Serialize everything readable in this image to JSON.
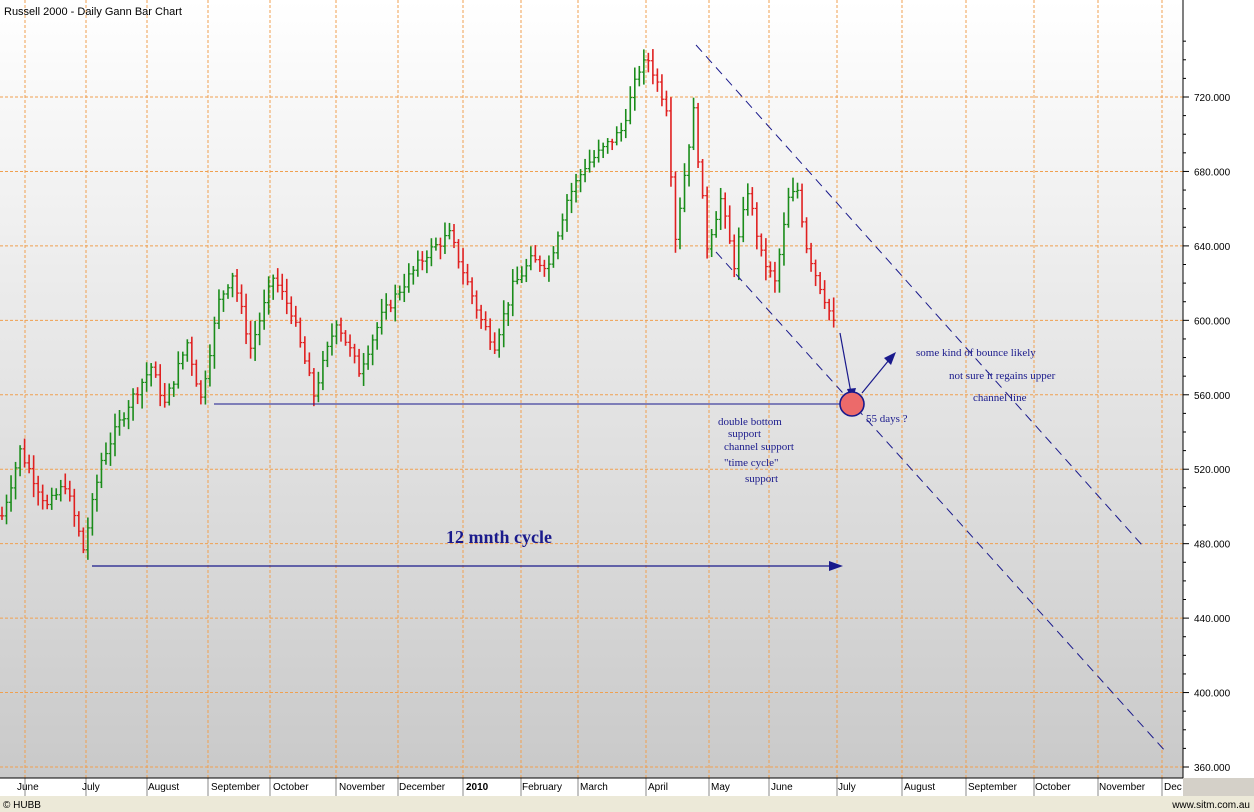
{
  "chart_data": {
    "type": "ohlc-bar",
    "title": "Russell 2000 - Daily Gann Bar Chart",
    "ylim": [
      360,
      760
    ],
    "y_ticks": [
      {
        "value": 360,
        "label": "360.000"
      },
      {
        "value": 400,
        "label": "400.000"
      },
      {
        "value": 440,
        "label": "440.000"
      },
      {
        "value": 480,
        "label": "480.000"
      },
      {
        "value": 520,
        "label": "520.000"
      },
      {
        "value": 560,
        "label": "560.000"
      },
      {
        "value": 600,
        "label": "600.000"
      },
      {
        "value": 640,
        "label": "640.000"
      },
      {
        "value": 680,
        "label": "680.000"
      },
      {
        "value": 720,
        "label": "720.000"
      }
    ],
    "x_labels": [
      "June",
      "July",
      "August",
      "September",
      "October",
      "November",
      "December",
      "2010",
      "February",
      "March",
      "April",
      "May",
      "June",
      "July",
      "August",
      "September",
      "October",
      "November",
      "Dec"
    ],
    "grid": true,
    "colors": {
      "up": "#1a8c1a",
      "down": "#e02020",
      "grid": "#f0a050",
      "annotation": "#1a1a8c"
    },
    "price_path": [
      {
        "t": 0,
        "v": 495
      },
      {
        "t": 4,
        "v": 530
      },
      {
        "t": 10,
        "v": 500
      },
      {
        "t": 14,
        "v": 512
      },
      {
        "t": 18,
        "v": 477
      },
      {
        "t": 22,
        "v": 525
      },
      {
        "t": 28,
        "v": 555
      },
      {
        "t": 33,
        "v": 575
      },
      {
        "t": 36,
        "v": 555
      },
      {
        "t": 41,
        "v": 588
      },
      {
        "t": 44,
        "v": 558
      },
      {
        "t": 48,
        "v": 610
      },
      {
        "t": 51,
        "v": 625
      },
      {
        "t": 55,
        "v": 585
      },
      {
        "t": 60,
        "v": 623
      },
      {
        "t": 64,
        "v": 605
      },
      {
        "t": 69,
        "v": 560
      },
      {
        "t": 74,
        "v": 600
      },
      {
        "t": 79,
        "v": 573
      },
      {
        "t": 84,
        "v": 602
      },
      {
        "t": 89,
        "v": 620
      },
      {
        "t": 94,
        "v": 636
      },
      {
        "t": 99,
        "v": 646
      },
      {
        "t": 103,
        "v": 620
      },
      {
        "t": 106,
        "v": 600
      },
      {
        "t": 109,
        "v": 587
      },
      {
        "t": 113,
        "v": 618
      },
      {
        "t": 117,
        "v": 632
      },
      {
        "t": 121,
        "v": 630
      },
      {
        "t": 125,
        "v": 665
      },
      {
        "t": 129,
        "v": 683
      },
      {
        "t": 133,
        "v": 692
      },
      {
        "t": 137,
        "v": 702
      },
      {
        "t": 141,
        "v": 735
      },
      {
        "t": 143,
        "v": 740
      },
      {
        "t": 147,
        "v": 715
      },
      {
        "t": 149,
        "v": 645
      },
      {
        "t": 153,
        "v": 712
      },
      {
        "t": 156,
        "v": 640
      },
      {
        "t": 159,
        "v": 665
      },
      {
        "t": 162,
        "v": 630
      },
      {
        "t": 165,
        "v": 670
      },
      {
        "t": 168,
        "v": 635
      },
      {
        "t": 171,
        "v": 620
      },
      {
        "t": 174,
        "v": 665
      },
      {
        "t": 176,
        "v": 670
      },
      {
        "t": 178,
        "v": 640
      },
      {
        "t": 180,
        "v": 625
      },
      {
        "t": 182,
        "v": 612
      },
      {
        "t": 184,
        "v": 598
      }
    ],
    "annotations": [
      {
        "text": "12 mnth cycle",
        "kind": "big"
      },
      {
        "text": "double bottom"
      },
      {
        "text": "support"
      },
      {
        "text": "channel support"
      },
      {
        "text": "\"time cycle\""
      },
      {
        "text": "support"
      },
      {
        "text": "55 days ?"
      },
      {
        "text": "some kind of bounce likely"
      },
      {
        "text": "not sure it regains upper"
      },
      {
        "text": "channel line"
      }
    ]
  },
  "footer": {
    "left": "© HUBB",
    "right": "www.sitm.com.au"
  }
}
